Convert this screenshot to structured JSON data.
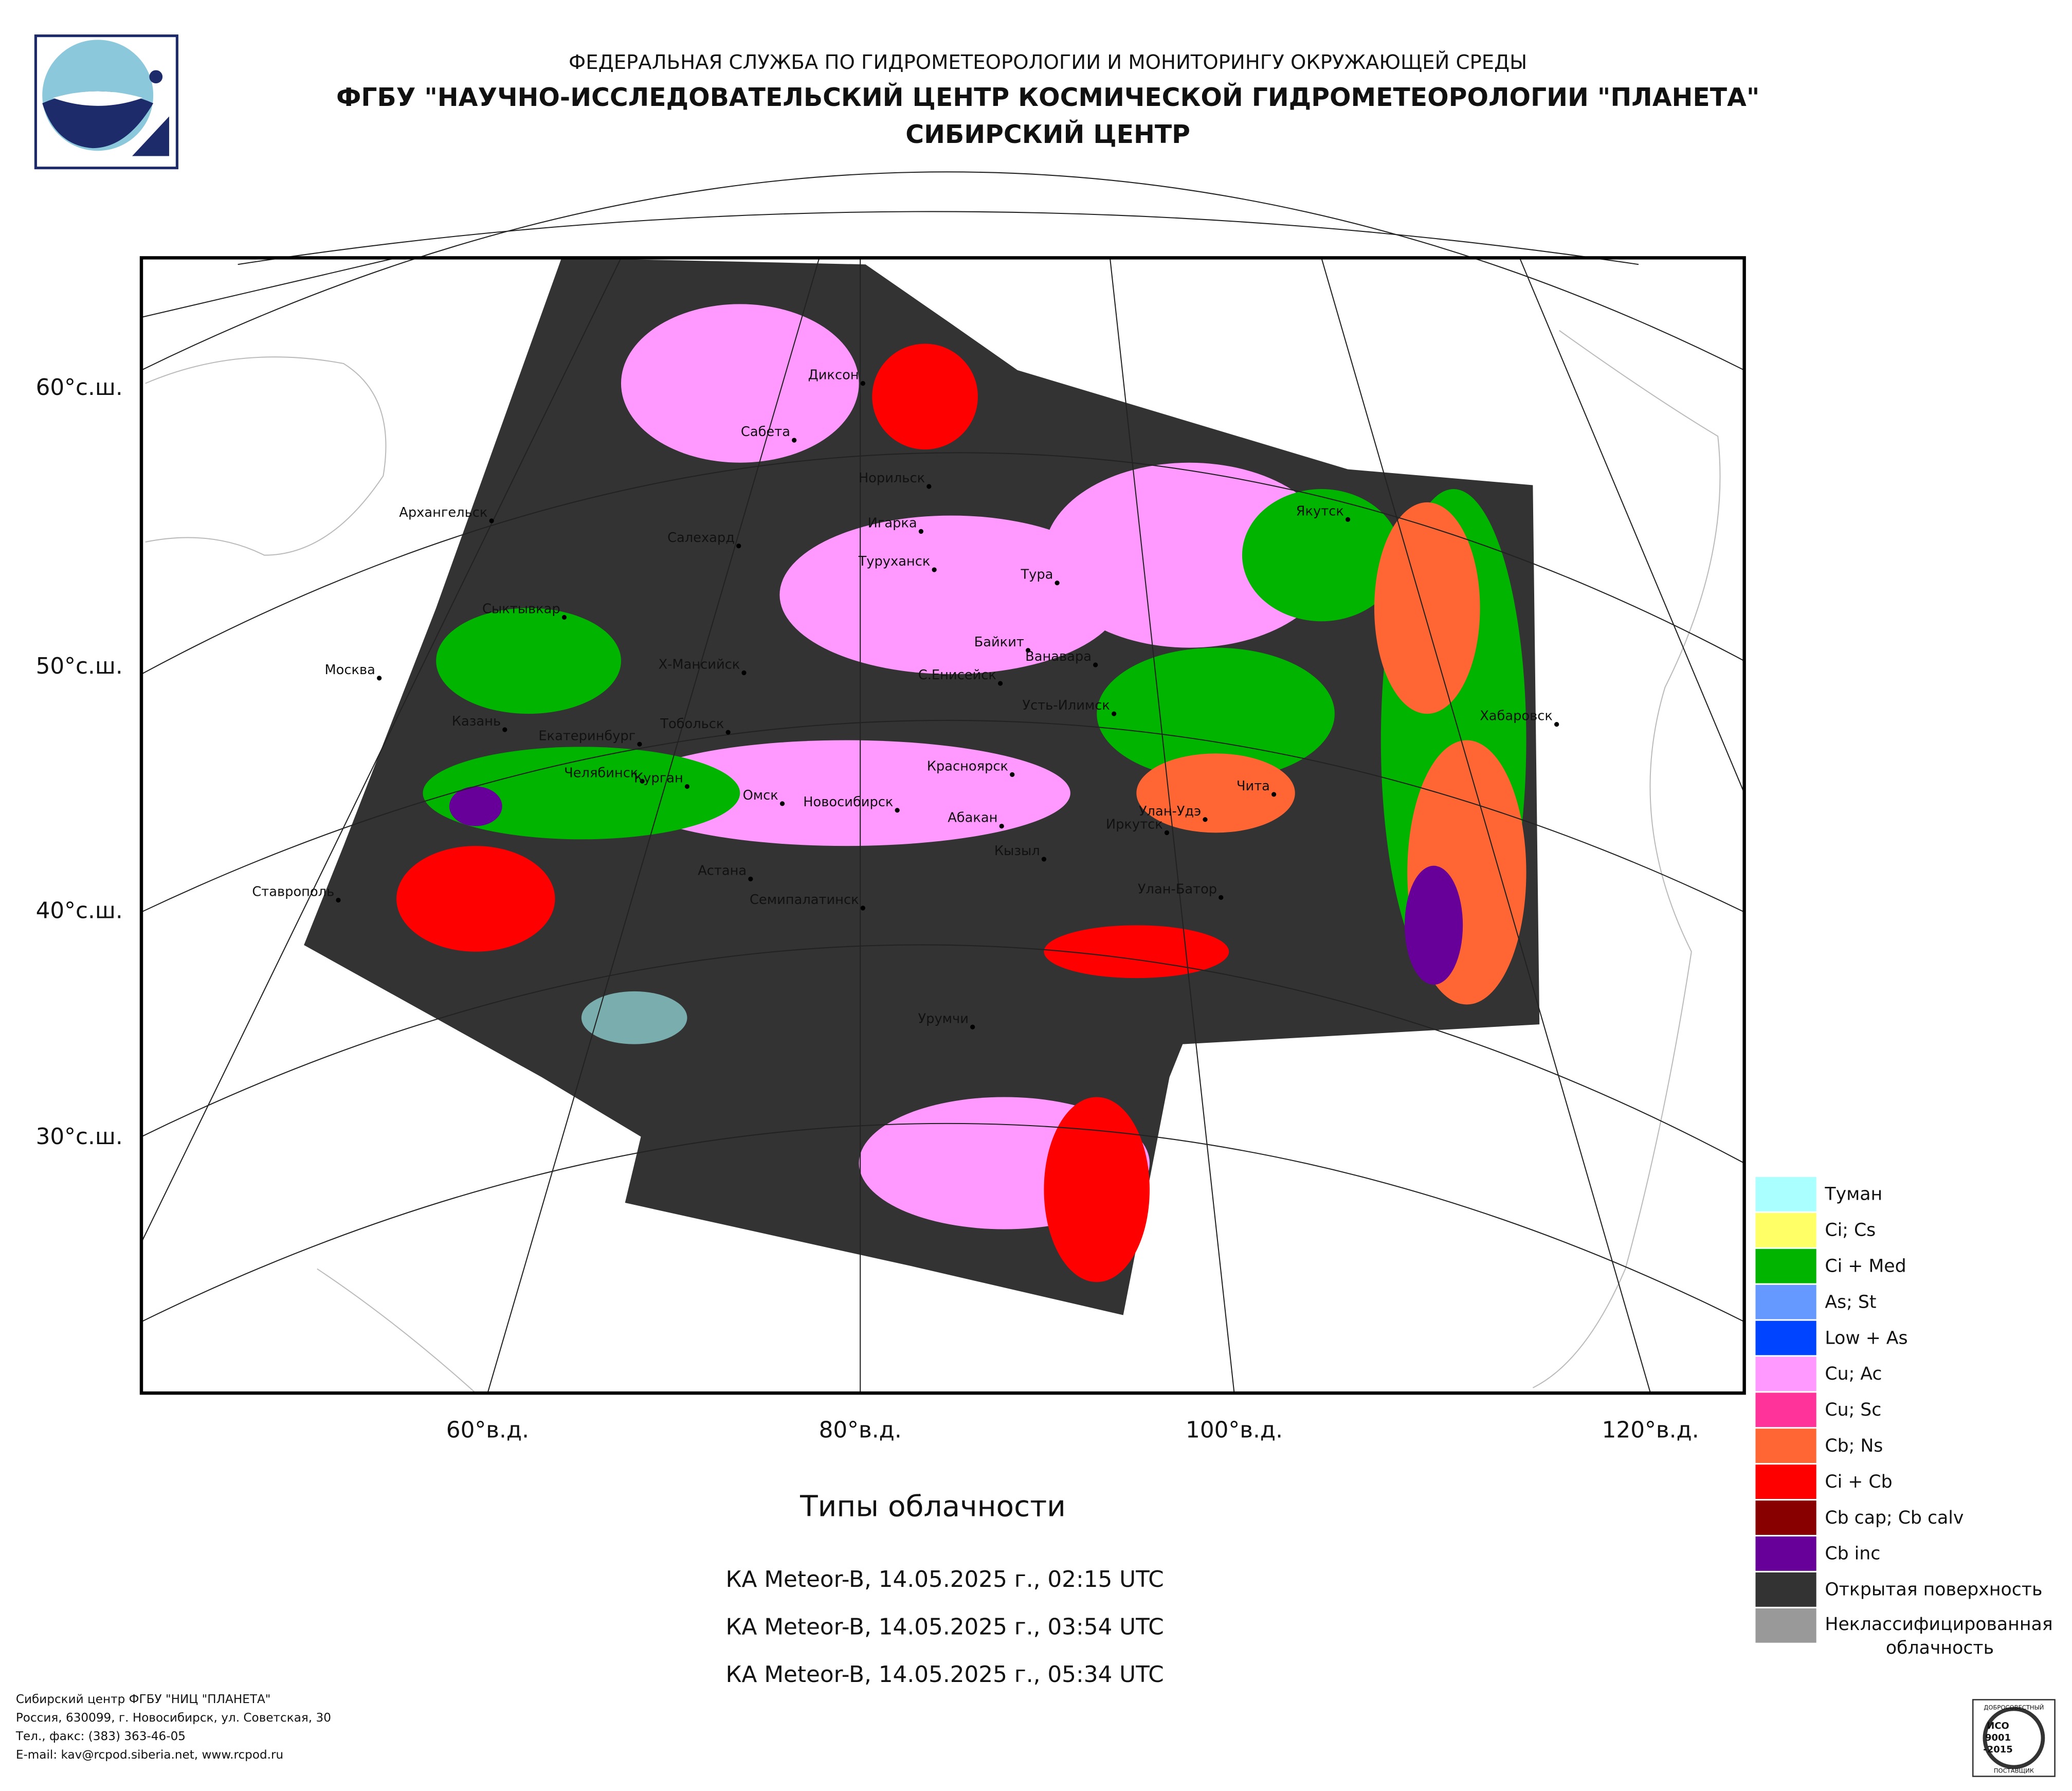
{
  "header": {
    "agency": "ФЕДЕРАЛЬНАЯ СЛУЖБА ПО ГИДРОМЕТЕОРОЛОГИИ И МОНИТОРИНГУ ОКРУЖАЮЩЕЙ СРЕДЫ",
    "center": "ФГБУ \"НАУЧНО-ИССЛЕДОВАТЕЛЬСКИЙ ЦЕНТР КОСМИЧЕСКОЙ ГИДРОМЕТЕОРОЛОГИИ \"ПЛАНЕТА\"",
    "branch": "СИБИРСКИЙ ЦЕНТР"
  },
  "map": {
    "lat_labels": [
      "60°с.ш.",
      "50°с.ш.",
      "40°с.ш.",
      "30°с.ш."
    ],
    "lon_labels": [
      "60°в.д.",
      "80°в.д.",
      "100°в.д.",
      "120°в.д."
    ],
    "cities": [
      "Диксон",
      "Сабета",
      "Норильск",
      "Игарка",
      "Туруханск",
      "Салехард",
      "Тура",
      "Архангельск",
      "Сыктывкар",
      "Байкит",
      "Ванавара",
      "Москва",
      "Х-Мансийск",
      "С.Енисейск",
      "Якутск",
      "Усть-Илимск",
      "Хабаровск",
      "Казань",
      "Тобольск",
      "Екатеринбург",
      "Красноярск",
      "Челябинск",
      "Курган",
      "Чита",
      "Омск",
      "Новосибирск",
      "Улан-Удэ",
      "Абакан",
      "Иркутск",
      "Кызыл",
      "Астана",
      "Улан-Батор",
      "Ставрополь",
      "Семипалатинск",
      "Урумчи"
    ]
  },
  "title": "Типы облачности",
  "passes": [
    "КА Meteor-B, 14.05.2025 г., 02:15 UTC",
    "КА Meteor-B, 14.05.2025 г., 03:54 UTC",
    "КА Meteor-B, 14.05.2025 г., 05:34 UTC"
  ],
  "legend": [
    {
      "label": "Туман",
      "color": "#aaffff"
    },
    {
      "label": "Ci; Cs",
      "color": "#ffff66"
    },
    {
      "label": "Ci + Med",
      "color": "#00b400"
    },
    {
      "label": "As; St",
      "color": "#6699ff"
    },
    {
      "label": "Low + As",
      "color": "#0044ff"
    },
    {
      "label": "Cu; Ac",
      "color": "#ff99ff"
    },
    {
      "label": "Cu; Sc",
      "color": "#ff3399"
    },
    {
      "label": "Cb; Ns",
      "color": "#ff6633"
    },
    {
      "label": "Ci + Cb",
      "color": "#ff0000"
    },
    {
      "label": "Cb cap; Cb calv",
      "color": "#880000"
    },
    {
      "label": "Cb inc",
      "color": "#660099"
    },
    {
      "label": "Открытая поверхность",
      "color": "#333333"
    },
    {
      "label": [
        "Неклассифицированная",
        "облачность"
      ],
      "color": "#999999"
    }
  ],
  "footer": [
    "Сибирский центр ФГБУ \"НИЦ \"ПЛАНЕТА\"",
    "Россия, 630099, г. Новосибирск, ул. Советская, 30",
    "Тел., факс: (383) 363-46-05",
    "E-mail: kav@rcpod.siberia.net, www.rcpod.ru"
  ],
  "badge": {
    "top": "ДОБРОСОВЕСТНЫЙ",
    "iso": [
      "ИСО",
      "9001",
      "-2015"
    ],
    "bottom": "ПОСТАВЩИК"
  }
}
